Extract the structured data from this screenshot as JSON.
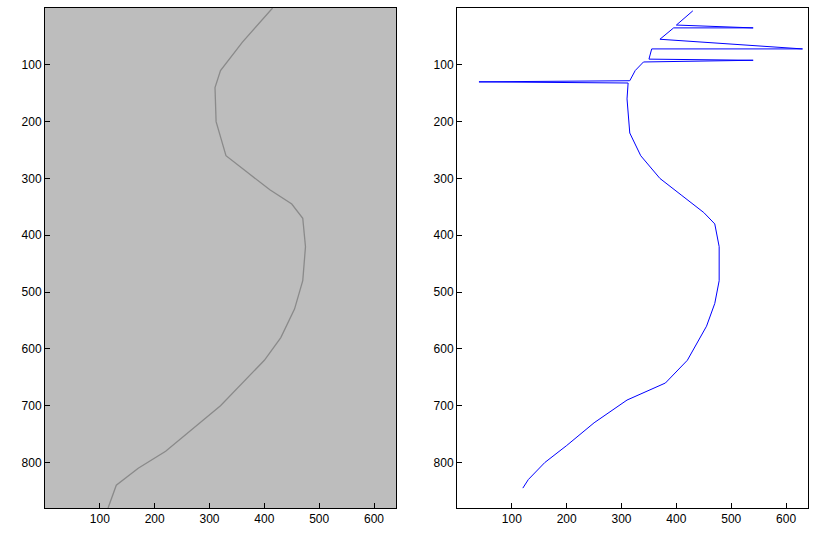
{
  "chart_data": [
    {
      "type": "line",
      "color": "#8a8a8a",
      "x": [
        415,
        360,
        320,
        310,
        312,
        330,
        370,
        410,
        450,
        470,
        475,
        470,
        455,
        430,
        400,
        360,
        320,
        270,
        220,
        170,
        130,
        115
      ],
      "values": [
        0,
        60,
        110,
        140,
        200,
        260,
        290,
        320,
        345,
        370,
        420,
        480,
        530,
        580,
        620,
        660,
        700,
        740,
        780,
        810,
        840,
        880
      ],
      "xlim": [
        0,
        640
      ],
      "ylim": [
        880,
        0
      ],
      "xticks": [
        100,
        200,
        300,
        400,
        500,
        600
      ],
      "yticks": [
        100,
        200,
        300,
        400,
        500,
        600,
        700,
        800
      ],
      "grid": false
    },
    {
      "type": "line",
      "color": "#0000ff",
      "x": [
        430,
        400,
        540,
        395,
        370,
        630,
        355,
        350,
        540,
        340,
        325,
        315,
        40,
        312,
        310,
        315,
        335,
        370,
        410,
        450,
        470,
        478,
        478,
        470,
        455,
        420,
        380,
        310,
        250,
        200,
        160,
        130,
        120
      ],
      "values": [
        5,
        30,
        35,
        35,
        55,
        72,
        72,
        90,
        92,
        95,
        110,
        128,
        130,
        132,
        160,
        220,
        260,
        300,
        330,
        360,
        380,
        420,
        480,
        520,
        560,
        620,
        660,
        690,
        730,
        770,
        800,
        830,
        845
      ],
      "xlim": [
        0,
        640
      ],
      "ylim": [
        880,
        0
      ],
      "xticks": [
        100,
        200,
        300,
        400,
        500,
        600
      ],
      "yticks": [
        100,
        200,
        300,
        400,
        500,
        600,
        700,
        800
      ],
      "grid": false
    }
  ]
}
